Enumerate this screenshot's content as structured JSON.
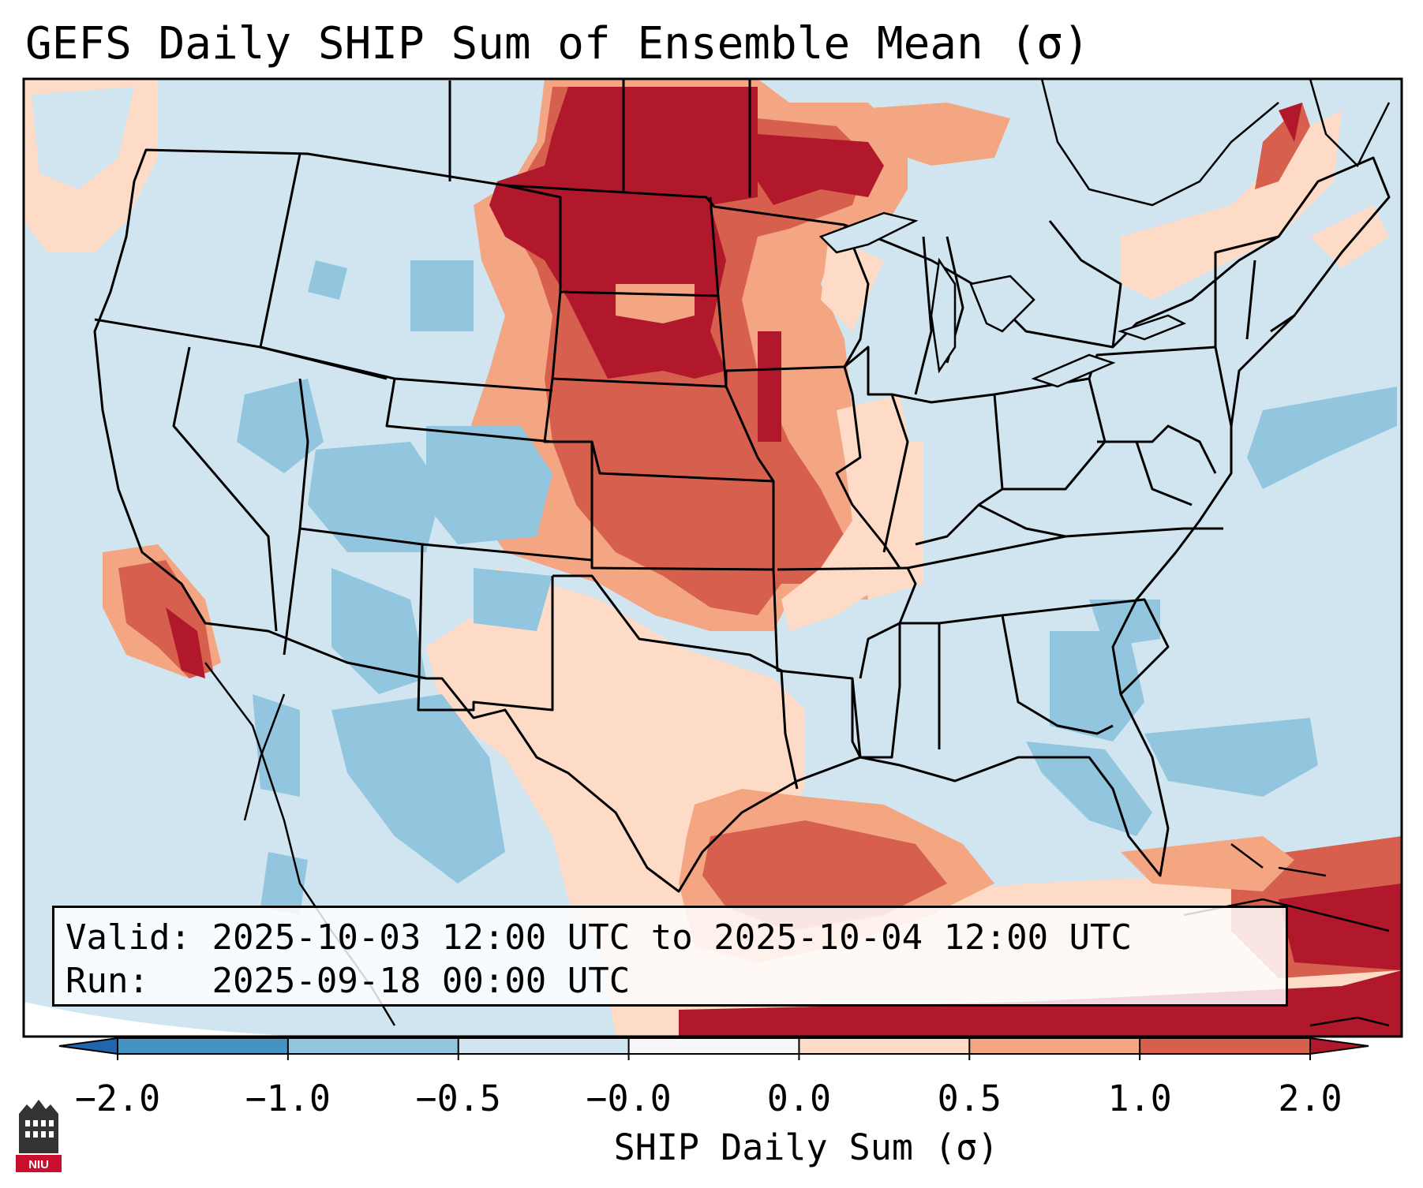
{
  "title": "GEFS Daily SHIP Sum of Ensemble Mean (σ)",
  "info": {
    "valid_label": "Valid:",
    "valid_value": "2025-10-03 12:00 UTC to 2025-10-04 12:00 UTC",
    "run_label": "Run:",
    "run_value": "2025-09-18 00:00 UTC"
  },
  "colorbar": {
    "label": "SHIP Daily Sum (σ)",
    "ticks": [
      "−2.0",
      "−1.0",
      "−0.5",
      "−0.0",
      "0.0",
      "0.5",
      "1.0",
      "2.0"
    ],
    "bins": [
      {
        "color": "#4393c3"
      },
      {
        "color": "#92c5de"
      },
      {
        "color": "#d1e5f0"
      },
      {
        "color": "#f7f7f7"
      },
      {
        "color": "#fddbc7"
      },
      {
        "color": "#f4a582"
      },
      {
        "color": "#d6604d"
      }
    ],
    "extend_low_color": "#2166ac",
    "extend_high_color": "#b2182b"
  },
  "map": {
    "region": "Contiguous United States",
    "background_color": "#d1e5f0",
    "high_anomaly_color": "#b2182b"
  },
  "logo": {
    "text": "NIU",
    "color": "#c8102e"
  }
}
